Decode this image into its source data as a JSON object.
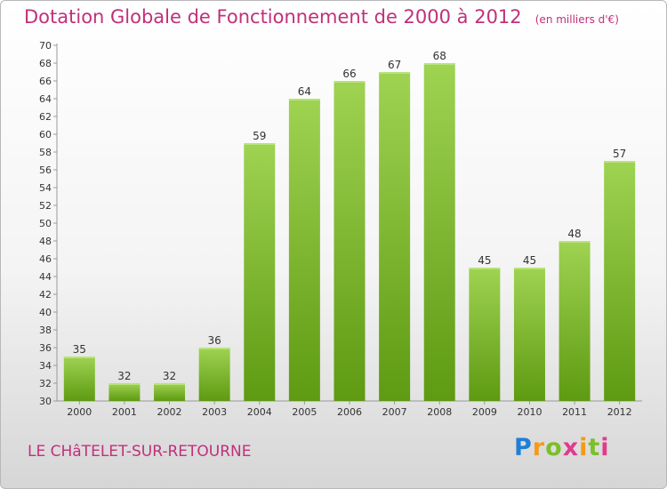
{
  "header": {
    "title": "Dotation Globale de Fonctionnement de 2000 à 2012",
    "unit_note": "(en milliers d'€)"
  },
  "footer": {
    "commune": "LE CHâTELET-SUR-RETOURNE",
    "logo_text": "Proxiti"
  },
  "colors": {
    "accent": "#c0307a",
    "bar_top": "#9fd352",
    "bar_bottom": "#5e9a12"
  },
  "chart_data": {
    "type": "bar",
    "categories": [
      "2000",
      "2001",
      "2002",
      "2003",
      "2004",
      "2005",
      "2006",
      "2007",
      "2008",
      "2009",
      "2010",
      "2011",
      "2012"
    ],
    "values": [
      35,
      32,
      32,
      36,
      59,
      64,
      66,
      67,
      68,
      45,
      45,
      48,
      57
    ],
    "title": "Dotation Globale de Fonctionnement de 2000 à 2012",
    "xlabel": "",
    "ylabel": "",
    "ylim": [
      30,
      70
    ],
    "yticks": [
      30,
      32,
      34,
      36,
      38,
      40,
      42,
      44,
      46,
      48,
      50,
      52,
      54,
      56,
      58,
      60,
      62,
      64,
      66,
      68,
      70
    ],
    "grid": false,
    "legend": "none"
  }
}
